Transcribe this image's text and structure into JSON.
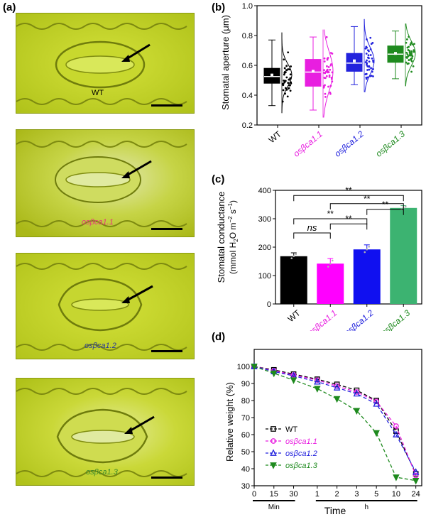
{
  "panels": {
    "a": {
      "letter": "(a)",
      "images": [
        {
          "label": "WT",
          "color": "#000000"
        },
        {
          "label": "osβca1.1",
          "color": "#e8357a"
        },
        {
          "label": "osβca1.2",
          "color": "#2a3a9a"
        },
        {
          "label": "osβca1.3",
          "color": "#3a8a2a"
        }
      ]
    },
    "b": {
      "letter": "(b)"
    },
    "c": {
      "letter": "(c)"
    },
    "d": {
      "letter": "(d)"
    }
  },
  "chart_data": [
    {
      "id": "b",
      "type": "box",
      "ylabel": "Stomatal aperture (μm)",
      "ylim": [
        0.2,
        1.0
      ],
      "yticks": [
        0.2,
        0.4,
        0.6,
        0.8,
        1.0
      ],
      "categories": [
        "WT",
        "osβca1.1",
        "osβca1.2",
        "osβca1.3"
      ],
      "colors": [
        "#000000",
        "#e81ee0",
        "#2222dd",
        "#1e8a1e"
      ],
      "boxes": [
        {
          "whisker_low": 0.33,
          "q1": 0.48,
          "median": 0.525,
          "mean": 0.535,
          "q3": 0.58,
          "whisker_high": 0.77
        },
        {
          "whisker_low": 0.3,
          "q1": 0.46,
          "median": 0.555,
          "mean": 0.56,
          "q3": 0.64,
          "whisker_high": 0.79
        },
        {
          "whisker_low": 0.47,
          "q1": 0.56,
          "median": 0.615,
          "mean": 0.63,
          "q3": 0.68,
          "whisker_high": 0.86
        },
        {
          "whisker_low": 0.51,
          "q1": 0.62,
          "median": 0.675,
          "mean": 0.68,
          "q3": 0.73,
          "whisker_high": 0.83
        }
      ]
    },
    {
      "id": "c",
      "type": "bar",
      "ylabel_line1": "Stomatal conductance",
      "ylabel_unit": "mmol H",
      "ylabel_sub": "2",
      "ylabel_mid": "O m",
      "ylabel_sup1": "−2",
      "ylabel_mid2": " s",
      "ylabel_sup2": "−1",
      "ylim": [
        0,
        400
      ],
      "yticks": [
        0,
        100,
        200,
        300,
        400
      ],
      "categories": [
        "WT",
        "osβca1.1",
        "osβca1.2",
        "osβca1.3"
      ],
      "label_colors": [
        "#000000",
        "#e81ee0",
        "#2222dd",
        "#1e8a1e"
      ],
      "bar_colors": [
        "#000000",
        "#ff00ff",
        "#1010f0",
        "#3cb371"
      ],
      "values": [
        168,
        142,
        192,
        338
      ],
      "errors": [
        12,
        18,
        16,
        8
      ],
      "significance": [
        {
          "from": 0,
          "to": 1,
          "label": "ns",
          "italic": true,
          "y": 250
        },
        {
          "from": 0,
          "to": 2,
          "label": "**",
          "y": 300
        },
        {
          "from": 0,
          "to": 3,
          "label": "**",
          "y": 382
        },
        {
          "from": 1,
          "to": 2,
          "label": "**",
          "y": 282
        },
        {
          "from": 1,
          "to": 3,
          "label": "**",
          "y": 353
        },
        {
          "from": 2,
          "to": 3,
          "label": "**",
          "y": 333
        }
      ]
    },
    {
      "id": "d",
      "type": "line",
      "ylabel": "Relative weight (%)",
      "xlabel": "Time",
      "ylim": [
        30,
        110
      ],
      "yticks": [
        30,
        40,
        50,
        60,
        70,
        80,
        90,
        100
      ],
      "x_ticks": [
        "0",
        "15",
        "30",
        "1",
        "2",
        "3",
        "5",
        "10",
        "24"
      ],
      "x_group_labels": [
        "Min",
        "h"
      ],
      "series": [
        {
          "name": "WT",
          "color": "#000000",
          "marker": "square",
          "values": [
            100,
            98,
            95.5,
            92.5,
            89.5,
            86,
            80,
            62,
            37
          ]
        },
        {
          "name": "osβca1.1",
          "color": "#e81ee0",
          "marker": "circle",
          "values": [
            100,
            97.5,
            95,
            92,
            88.5,
            85,
            79.5,
            65,
            36
          ]
        },
        {
          "name": "osβca1.2",
          "color": "#2222dd",
          "marker": "triangle-up",
          "values": [
            100,
            97,
            94.5,
            91,
            87.5,
            84,
            78,
            60,
            38
          ]
        },
        {
          "name": "osβca1.3",
          "color": "#1e8a1e",
          "marker": "triangle-down",
          "values": [
            100,
            96,
            92,
            87,
            81,
            74,
            61,
            35,
            33
          ]
        }
      ]
    }
  ]
}
